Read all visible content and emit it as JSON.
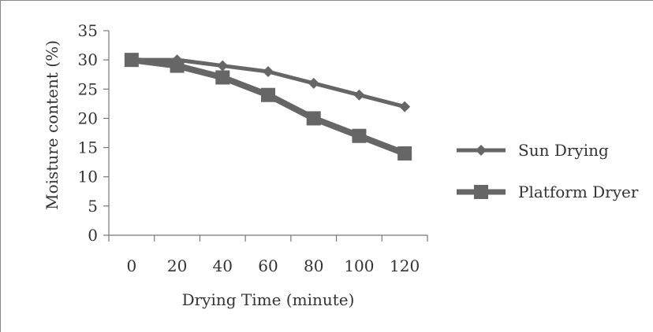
{
  "chart_data": {
    "type": "line",
    "title": "",
    "xlabel": "Drying Time (minute)",
    "ylabel": "Moisture content (%)",
    "categories": [
      "0",
      "20",
      "40",
      "60",
      "80",
      "100",
      "120"
    ],
    "x": [
      0,
      20,
      40,
      60,
      80,
      100,
      120
    ],
    "y_ticks": [
      "0",
      "5",
      "10",
      "15",
      "20",
      "25",
      "30",
      "35"
    ],
    "ylim": [
      0,
      35
    ],
    "grid": false,
    "legend_position": "right",
    "series": [
      {
        "name": "Sun Drying",
        "values": [
          30,
          30,
          29,
          28,
          26,
          24,
          22
        ],
        "marker": "diamond",
        "color": "#666666"
      },
      {
        "name": "Platform Dryer",
        "values": [
          30,
          29,
          27,
          24,
          20,
          17,
          14
        ],
        "marker": "square",
        "color": "#666666"
      }
    ]
  }
}
